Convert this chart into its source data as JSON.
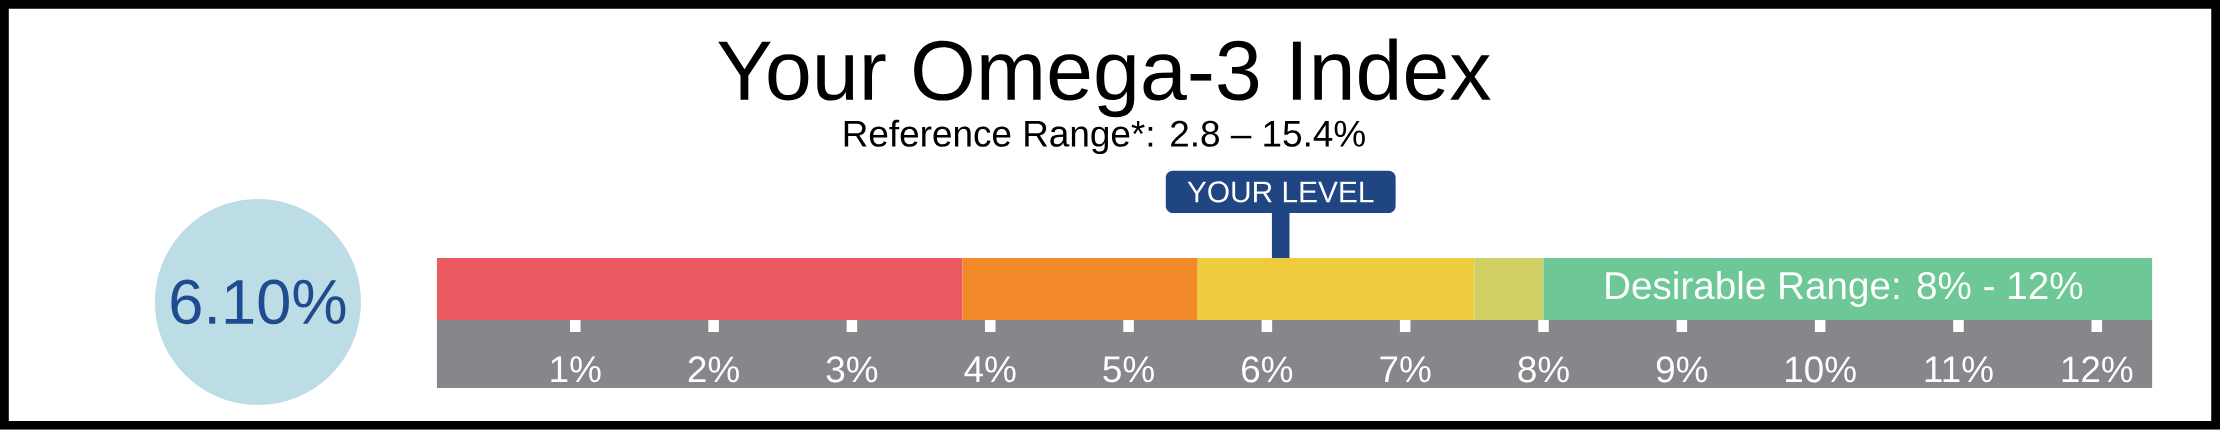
{
  "chart_data": {
    "type": "bar",
    "orientation": "horizontal",
    "stacked": true,
    "title": "Your Omega-3 Index",
    "subtitle": "Reference Range*: 2.8 – 15.4%",
    "categories": [
      null
    ],
    "tick_labels": "x",
    "series": [
      {
        "color": "#ec5b62",
        "values": [
          3.8
        ]
      },
      {
        "color": "#f28a2a",
        "values": [
          1.7
        ]
      },
      {
        "color": "#efcc3e",
        "values": [
          2.0
        ]
      },
      {
        "color": "#cfcf66",
        "values": [
          0.5
        ]
      },
      {
        "color": "#6dc797",
        "values": [
          4.4
        ]
      }
    ],
    "annotations": [
      "6.10%",
      "Desirable Range: 8% - 12%"
    ],
    "ref_lines": [
      {
        "axis": "x",
        "value": 6.1,
        "label": "YOUR LEVEL",
        "color": "#1f4582"
      }
    ],
    "xlim": [
      0,
      12.4
    ],
    "xticks": [
      {
        "value": 1,
        "label": "1%"
      },
      {
        "value": 2,
        "label": "2%"
      },
      {
        "value": 3,
        "label": "3%"
      },
      {
        "value": 4,
        "label": "4%"
      },
      {
        "value": 5,
        "label": "5%"
      },
      {
        "value": 6,
        "label": "6%"
      },
      {
        "value": 7,
        "label": "7%"
      },
      {
        "value": 8,
        "label": "8%"
      },
      {
        "value": 9,
        "label": "9%"
      },
      {
        "value": 10,
        "label": "10%"
      },
      {
        "value": 11,
        "label": "11%"
      },
      {
        "value": 12,
        "label": "12%"
      }
    ]
  }
}
